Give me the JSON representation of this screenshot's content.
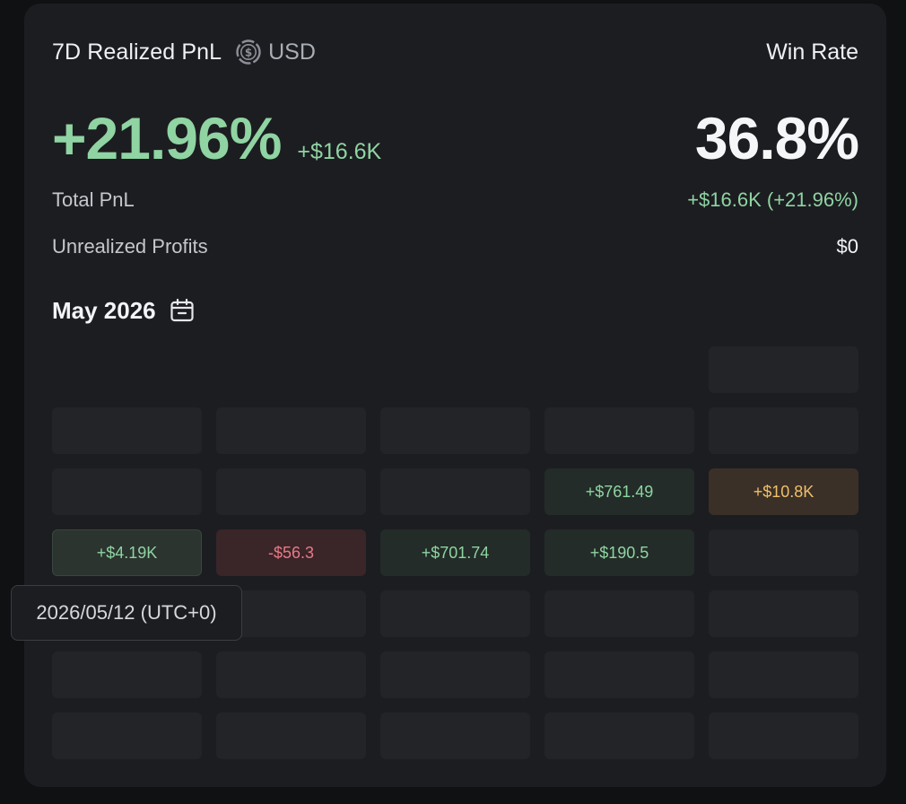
{
  "header": {
    "title": "7D Realized PnL",
    "currency_icon": "usd-coin-icon",
    "currency": "USD",
    "winrate_label": "Win Rate"
  },
  "metrics": {
    "pnl_percent": "+21.96%",
    "pnl_amount": "+$16.6K",
    "win_rate": "36.8%"
  },
  "stats": {
    "total_pnl_label": "Total PnL",
    "total_pnl_value": "+$16.6K (+21.96%)",
    "unrealized_label": "Unrealized Profits",
    "unrealized_value": "$0"
  },
  "calendar": {
    "month": "May 2026",
    "icon": "calendar-icon",
    "rows": [
      [
        {
          "t": "none",
          "v": ""
        },
        {
          "t": "none",
          "v": ""
        },
        {
          "t": "none",
          "v": ""
        },
        {
          "t": "none",
          "v": ""
        },
        {
          "t": "empty",
          "v": ""
        }
      ],
      [
        {
          "t": "empty",
          "v": ""
        },
        {
          "t": "empty",
          "v": ""
        },
        {
          "t": "empty",
          "v": ""
        },
        {
          "t": "empty",
          "v": ""
        },
        {
          "t": "empty",
          "v": ""
        }
      ],
      [
        {
          "t": "empty",
          "v": ""
        },
        {
          "t": "empty",
          "v": ""
        },
        {
          "t": "empty",
          "v": ""
        },
        {
          "t": "green",
          "v": "+$761.49"
        },
        {
          "t": "amber",
          "v": "+$10.8K"
        }
      ],
      [
        {
          "t": "green-strong",
          "v": "+$4.19K"
        },
        {
          "t": "red",
          "v": "-$56.3"
        },
        {
          "t": "green",
          "v": "+$701.74"
        },
        {
          "t": "green",
          "v": "+$190.5"
        },
        {
          "t": "empty",
          "v": ""
        }
      ],
      [
        {
          "t": "empty",
          "v": ""
        },
        {
          "t": "empty",
          "v": ""
        },
        {
          "t": "empty",
          "v": ""
        },
        {
          "t": "empty",
          "v": ""
        },
        {
          "t": "empty",
          "v": ""
        }
      ],
      [
        {
          "t": "empty",
          "v": ""
        },
        {
          "t": "empty",
          "v": ""
        },
        {
          "t": "empty",
          "v": ""
        },
        {
          "t": "empty",
          "v": ""
        },
        {
          "t": "empty",
          "v": ""
        }
      ],
      [
        {
          "t": "empty",
          "v": ""
        },
        {
          "t": "empty",
          "v": ""
        },
        {
          "t": "empty",
          "v": ""
        },
        {
          "t": "empty",
          "v": ""
        },
        {
          "t": "empty",
          "v": ""
        }
      ]
    ]
  },
  "tooltip": {
    "text": "2026/05/12 (UTC+0)"
  }
}
